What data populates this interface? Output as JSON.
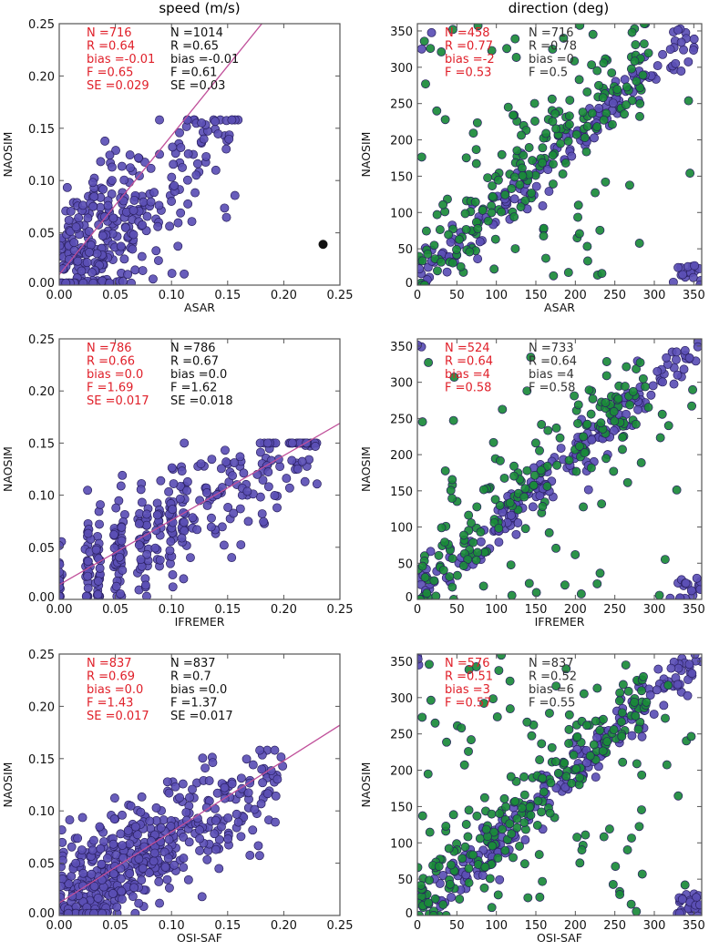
{
  "column_titles": [
    "speed (m/s)",
    "direction (deg)"
  ],
  "colors": {
    "series_a": "#5b4fb5",
    "series_b": "#1a8a3a",
    "outlier": "#111111",
    "regression": "#c0509a",
    "stats_red": "#e0202a",
    "stats_black": "#111111",
    "stats_gray": "#333333"
  },
  "chart_data": [
    {
      "type": "scatter",
      "panel": "speed-asar",
      "title": "speed (m/s)",
      "xlabel": "ASAR",
      "ylabel": "NAOSIM",
      "xlim": [
        0,
        0.25
      ],
      "ylim": [
        0,
        0.25
      ],
      "xticks": [
        "0.00",
        "0.05",
        "0.10",
        "0.15",
        "0.20",
        "0.25"
      ],
      "yticks": [
        "0.00",
        "0.05",
        "0.10",
        "0.15",
        "0.20",
        "0.25"
      ],
      "regression": {
        "intercept": 0.01,
        "slope": 1.33
      },
      "outliers": [
        {
          "x": 0.235,
          "y": 0.039
        }
      ],
      "point_cloud": {
        "n": 330,
        "mode": "speed",
        "spread": 0.035,
        "xmax": 0.16,
        "clusterx": 0.03
      },
      "stats_red": [
        "N =716",
        "R =0.64",
        "bias =-0.01",
        "F =0.65",
        "SE =0.029"
      ],
      "stats_black": [
        "N =1014",
        "R =0.65",
        "bias =-0.01",
        "F =0.61",
        "SE =0.03"
      ]
    },
    {
      "type": "scatter",
      "panel": "direction-asar",
      "title": "direction (deg)",
      "xlabel": "ASAR",
      "ylabel": "NAOSIM",
      "xlim": [
        0,
        360
      ],
      "ylim": [
        0,
        360
      ],
      "xticks": [
        "0",
        "50",
        "100",
        "150",
        "200",
        "250",
        "300",
        "350"
      ],
      "yticks": [
        "0",
        "50",
        "100",
        "150",
        "200",
        "250",
        "300",
        "350"
      ],
      "point_cloud": {
        "n_a": 170,
        "n_b": 230,
        "mode": "direction",
        "noise_b": 0.35
      },
      "stats_red": [
        "N =458",
        "R =0.77",
        "bias =-2",
        "F =0.53"
      ],
      "stats_black": [
        "N =716",
        "R =0.78",
        "bias =0",
        "F =0.5"
      ]
    },
    {
      "type": "scatter",
      "panel": "speed-ifremer",
      "title": "",
      "xlabel": "IFREMER",
      "ylabel": "NAOSIM",
      "xlim": [
        0,
        0.25
      ],
      "ylim": [
        0,
        0.25
      ],
      "xticks": [
        "0.00",
        "0.05",
        "0.10",
        "0.15",
        "0.20",
        "0.25"
      ],
      "yticks": [
        "0.00",
        "0.05",
        "0.10",
        "0.15",
        "0.20",
        "0.25"
      ],
      "regression": {
        "intercept": 0.014,
        "slope": 0.62
      },
      "point_cloud": {
        "n": 360,
        "mode": "speed-binned",
        "bins": [
          0.0,
          0.025,
          0.035,
          0.05,
          0.055,
          0.072,
          0.078,
          0.088,
          0.1,
          0.11
        ],
        "xmax": 0.23
      },
      "stats_red": [
        "N =786",
        "R =0.66",
        "bias =0.0",
        "F =1.69",
        "SE =0.017"
      ],
      "stats_black": [
        "N =786",
        "R =0.67",
        "bias =0.0",
        "F =1.62",
        "SE =0.018"
      ]
    },
    {
      "type": "scatter",
      "panel": "direction-ifremer",
      "title": "",
      "xlabel": "IFREMER",
      "ylabel": "NAOSIM",
      "xlim": [
        0,
        360
      ],
      "ylim": [
        0,
        360
      ],
      "xticks": [
        "0",
        "50",
        "100",
        "150",
        "200",
        "250",
        "300",
        "350"
      ],
      "yticks": [
        "0",
        "50",
        "100",
        "150",
        "200",
        "250",
        "300",
        "350"
      ],
      "point_cloud": {
        "n_a": 200,
        "n_b": 200,
        "mode": "direction",
        "noise_b": 0.3
      },
      "stats_red": [
        "N =524",
        "R =0.64",
        "bias =4",
        "F =0.58"
      ],
      "stats_black": [
        "N =733",
        "R =0.64",
        "bias =4",
        "F =0.58"
      ]
    },
    {
      "type": "scatter",
      "panel": "speed-osisaf",
      "title": "",
      "xlabel": "OSI-SAF",
      "ylabel": "NAOSIM",
      "xlim": [
        0,
        0.25
      ],
      "ylim": [
        0,
        0.25
      ],
      "xticks": [
        "0.00",
        "0.05",
        "0.10",
        "0.15",
        "0.20",
        "0.25"
      ],
      "yticks": [
        "0.00",
        "0.05",
        "0.10",
        "0.15",
        "0.20",
        "0.25"
      ],
      "regression": {
        "intercept": 0.012,
        "slope": 0.68
      },
      "point_cloud": {
        "n": 480,
        "mode": "speed",
        "spread": 0.028,
        "xmax": 0.2,
        "clusterx": 0.05
      },
      "stats_red": [
        "N =837",
        "R =0.69",
        "bias =0.0",
        "F =1.43",
        "SE =0.017"
      ],
      "stats_black": [
        "N =837",
        "R =0.7",
        "bias =0.0",
        "F =1.37",
        "SE =0.017"
      ]
    },
    {
      "type": "scatter",
      "panel": "direction-osisaf",
      "title": "",
      "xlabel": "OSI-SAF",
      "ylabel": "NAOSIM",
      "xlim": [
        0,
        360
      ],
      "ylim": [
        0,
        360
      ],
      "xticks": [
        "0",
        "50",
        "100",
        "150",
        "200",
        "250",
        "300",
        "350"
      ],
      "yticks": [
        "0",
        "50",
        "100",
        "150",
        "200",
        "250",
        "300",
        "350"
      ],
      "point_cloud": {
        "n_a": 230,
        "n_b": 260,
        "mode": "direction",
        "noise_b": 0.4
      },
      "stats_red": [
        "N =576",
        "R =0.51",
        "bias =3",
        "F =0.57"
      ],
      "stats_black": [
        "N =837",
        "R =0.52",
        "bias =6",
        "F =0.55"
      ]
    }
  ]
}
